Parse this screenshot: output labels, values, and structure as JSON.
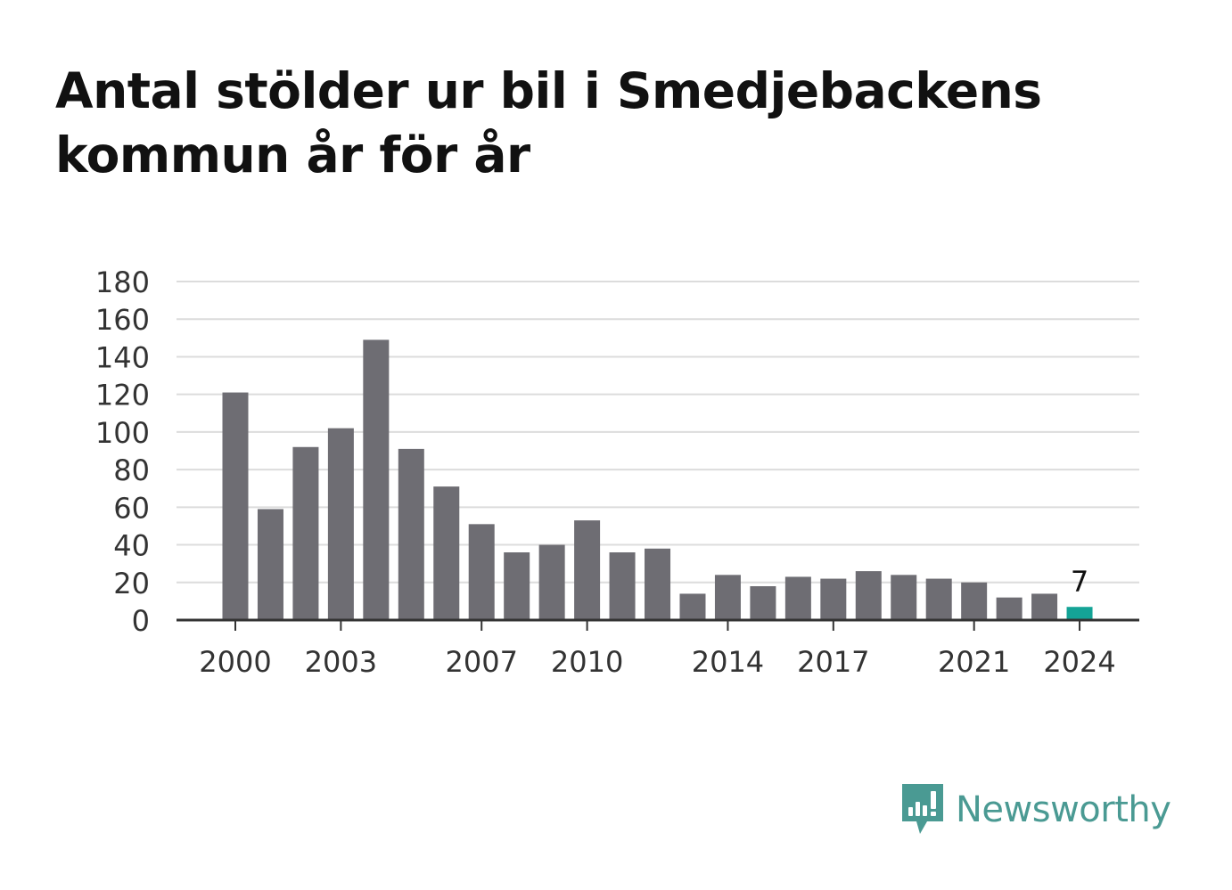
{
  "title": "Antal stölder ur bil i Smedjebackens kommun år för år",
  "brand": {
    "name": "Newsworthy",
    "icon": "newsworthy-logo-icon",
    "color": "#4a9a93"
  },
  "chart_data": {
    "type": "bar",
    "title": "Antal stölder ur bil i Smedjebackens kommun år för år",
    "xlabel": "",
    "ylabel": "",
    "categories": [
      2000,
      2001,
      2002,
      2003,
      2004,
      2005,
      2006,
      2007,
      2008,
      2009,
      2010,
      2011,
      2012,
      2013,
      2014,
      2015,
      2016,
      2017,
      2018,
      2019,
      2020,
      2021,
      2022,
      2023,
      2024
    ],
    "values": [
      121,
      59,
      92,
      102,
      149,
      91,
      71,
      51,
      36,
      40,
      53,
      36,
      38,
      14,
      24,
      18,
      23,
      22,
      26,
      24,
      22,
      20,
      12,
      14,
      7
    ],
    "x_tick_labels": [
      2000,
      2003,
      2007,
      2010,
      2014,
      2017,
      2021,
      2024
    ],
    "y_ticks": [
      0,
      20,
      40,
      60,
      80,
      100,
      120,
      140,
      160,
      180
    ],
    "ylim": [
      0,
      180
    ],
    "grid": true,
    "bar_color": "#6e6d73",
    "highlight_color": "#14a396",
    "highlight_category": 2024,
    "data_labels": [
      {
        "category": 2024,
        "text": "7"
      }
    ]
  }
}
